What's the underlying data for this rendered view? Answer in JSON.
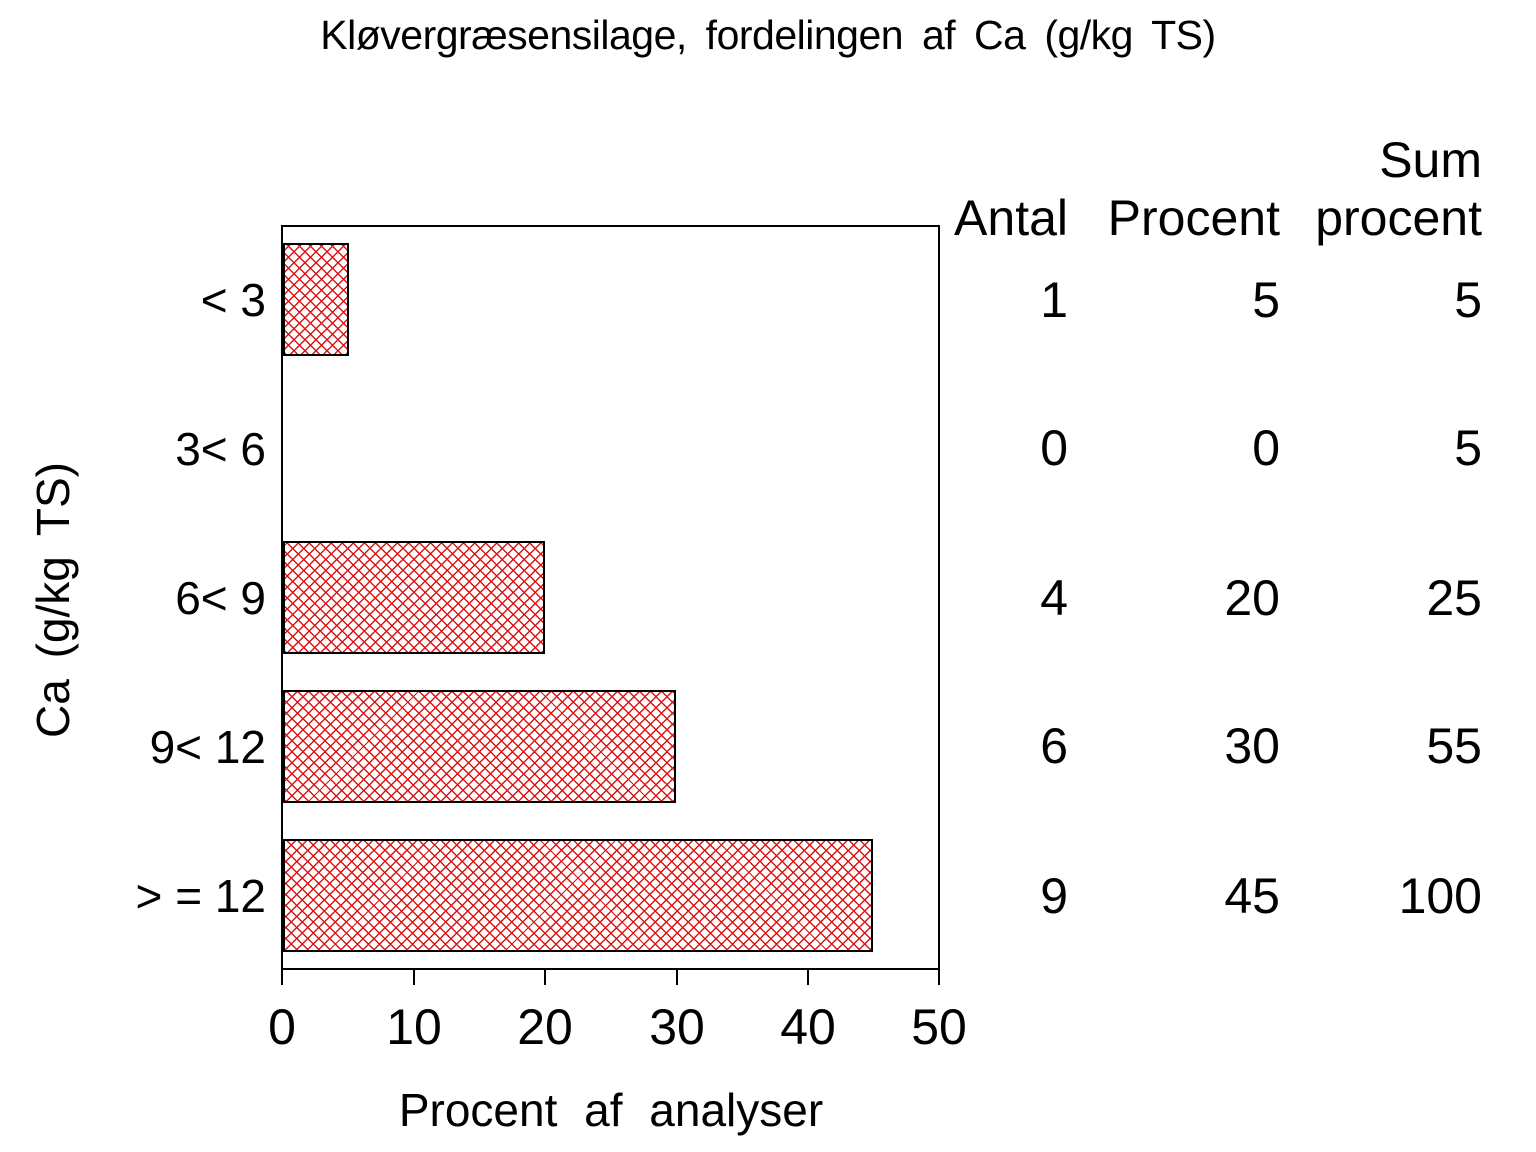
{
  "colors": {
    "bar_hatch": "#dd1515",
    "bar_border": "#000000",
    "axis": "#000000",
    "text": "#000000",
    "background": "#ffffff"
  },
  "title": "Kløvergræsensilage, fordelingen af Ca (g/kg TS)",
  "axes": {
    "x_label": "Procent af analyser",
    "y_label": "Ca (g/kg TS)",
    "x_ticks": [
      "0",
      "10",
      "20",
      "30",
      "40",
      "50"
    ]
  },
  "table": {
    "header_antal": "Antal",
    "header_procent": "Procent",
    "header_sum_line1": "Sum",
    "header_sum_line2": "procent"
  },
  "rows": [
    {
      "category": "< 3",
      "antal": "1",
      "procent": "5",
      "sum_procent": "5"
    },
    {
      "category": "3< 6",
      "antal": "0",
      "procent": "0",
      "sum_procent": "5"
    },
    {
      "category": "6< 9",
      "antal": "4",
      "procent": "20",
      "sum_procent": "25"
    },
    {
      "category": "9< 12",
      "antal": "6",
      "procent": "30",
      "sum_procent": "55"
    },
    {
      "category": "> = 12",
      "antal": "9",
      "procent": "45",
      "sum_procent": "100"
    }
  ],
  "chart_data": {
    "type": "bar",
    "orientation": "horizontal",
    "title": "Kløvergræsensilage, fordelingen af Ca (g/kg TS)",
    "categories": [
      "< 3",
      "3< 6",
      "6< 9",
      "9< 12",
      "> = 12"
    ],
    "values": [
      5,
      0,
      20,
      30,
      45
    ],
    "xlabel": "Procent af analyser",
    "ylabel": "Ca (g/kg TS)",
    "xlim": [
      0,
      50
    ],
    "xticks": [
      0,
      10,
      20,
      30,
      40,
      50
    ],
    "grid": false,
    "legend": false,
    "bar_style": "red diagonal crosshatch, black outline",
    "table": {
      "columns": [
        "Antal",
        "Procent",
        "Sum procent"
      ],
      "Antal": [
        1,
        0,
        4,
        6,
        9
      ],
      "Procent": [
        5,
        0,
        20,
        30,
        45
      ],
      "Sum procent": [
        5,
        5,
        25,
        55,
        100
      ]
    }
  }
}
